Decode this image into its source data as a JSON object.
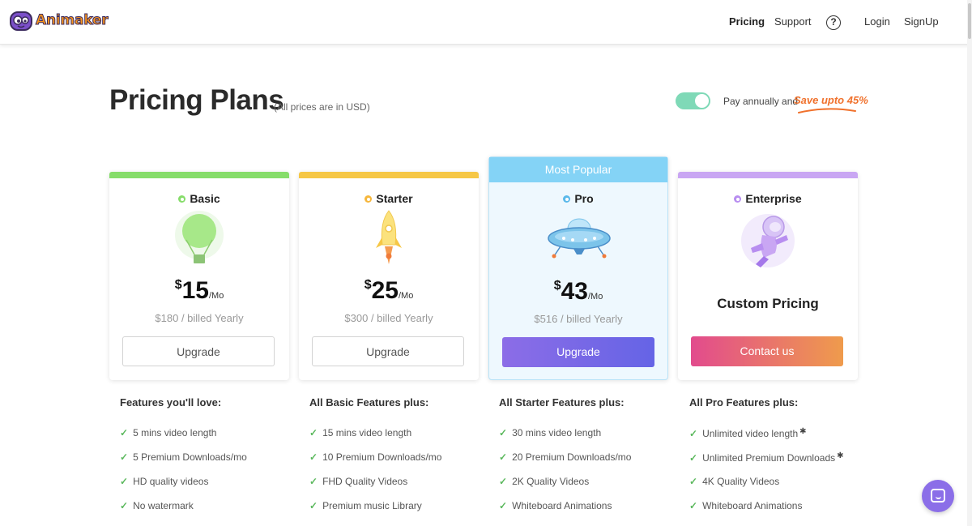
{
  "header": {
    "logo_text": "Animaker",
    "nav": [
      {
        "label": "Pricing",
        "active": true
      },
      {
        "label": "Support",
        "active": false
      },
      {
        "label": "Login",
        "active": false
      },
      {
        "label": "SignUp",
        "active": false
      }
    ],
    "help_icon": "question-circle-icon"
  },
  "page": {
    "title": "Pricing Plans",
    "note": "(All prices are in USD)",
    "toggle": {
      "state": "on",
      "label": "Pay annually and",
      "highlight": "Save upto 45%"
    }
  },
  "plans": [
    {
      "name": "Basic",
      "accent": "#86dd6a",
      "currency": "$",
      "amount": "15",
      "period": "/Mo",
      "billed": "$180 / billed Yearly",
      "button": "Upgrade",
      "icon": "hot-air-balloon-icon"
    },
    {
      "name": "Starter",
      "accent": "#f6c745",
      "currency": "$",
      "amount": "25",
      "period": "/Mo",
      "billed": "$300 / billed Yearly",
      "button": "Upgrade",
      "icon": "rocket-icon"
    },
    {
      "name": "Pro",
      "badge": "Most Popular",
      "accent": "#84d3f6",
      "currency": "$",
      "amount": "43",
      "period": "/Mo",
      "billed": "$516 / billed Yearly",
      "button": "Upgrade",
      "icon": "ufo-icon"
    },
    {
      "name": "Enterprise",
      "accent": "#c9a6f3",
      "custom_price": "Custom Pricing",
      "button": "Contact us",
      "icon": "astronaut-icon"
    }
  ],
  "features": [
    {
      "heading": "Features you'll love:",
      "items": [
        "5 mins video length",
        "5 Premium Downloads/mo",
        "HD quality videos",
        "No watermark"
      ]
    },
    {
      "heading": "All Basic Features plus:",
      "items": [
        "15 mins video length",
        "10 Premium Downloads/mo",
        "FHD Quality Videos",
        "Premium music Library"
      ]
    },
    {
      "heading": "All Starter Features plus:",
      "items": [
        "30 mins video length",
        "20 Premium Downloads/mo",
        "2K Quality Videos",
        "Whiteboard Animations"
      ]
    },
    {
      "heading": "All Pro Features plus:",
      "items": [
        "Unlimited video length",
        "Unlimited Premium Downloads",
        "4K Quality Videos",
        "Whiteboard Animations"
      ],
      "starred": [
        0,
        1
      ]
    }
  ],
  "chat_widget": {
    "icon": "chat-icon"
  }
}
